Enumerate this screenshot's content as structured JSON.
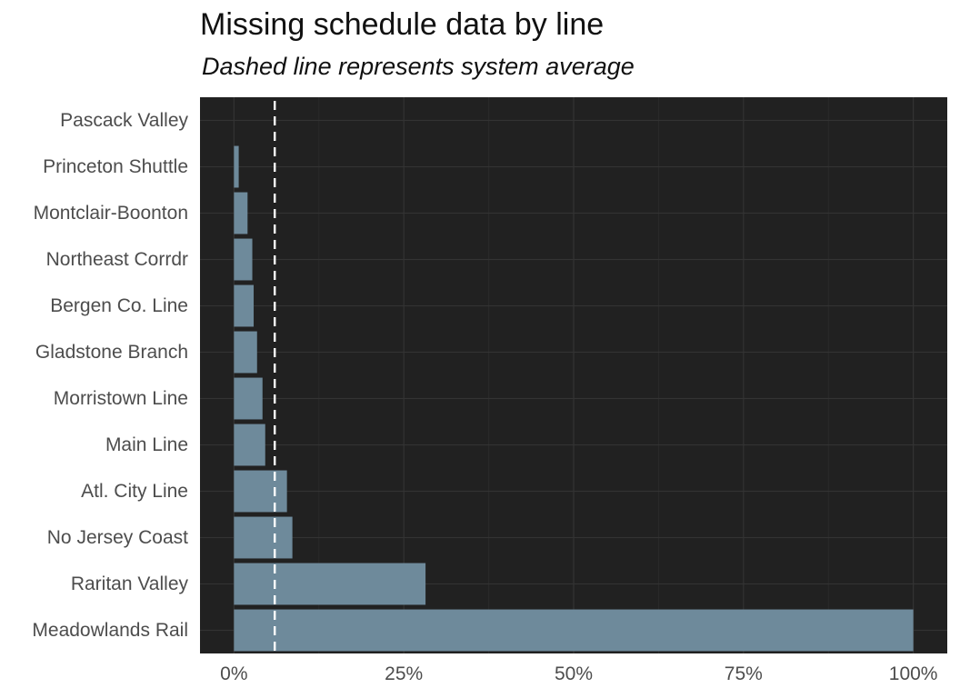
{
  "chart_data": {
    "type": "bar",
    "orientation": "horizontal",
    "title": "Missing schedule data by line",
    "subtitle": "Dashed line represents system average",
    "xlabel": "",
    "ylabel": "",
    "categories": [
      "Pascack Valley",
      "Princeton Shuttle",
      "Montclair-Boonton",
      "Northeast Corrdr",
      "Bergen Co. Line ",
      "Gladstone Branch",
      "Morristown Line",
      "Main Line",
      "Atl. City Line",
      "No Jersey Coast",
      "Raritan Valley",
      "Meadowlands Rail"
    ],
    "values": [
      0.0,
      0.7,
      2.0,
      2.7,
      2.9,
      3.4,
      4.2,
      4.6,
      7.8,
      8.6,
      28.2,
      100.0
    ],
    "value_unit": "percent",
    "reference_line": {
      "value": 6.0,
      "style": "dashed",
      "color": "#ffffff"
    },
    "xlim": [
      -5,
      105
    ],
    "x_ticks": [
      0,
      25,
      50,
      75,
      100
    ],
    "x_tick_labels": [
      "0%",
      "25%",
      "50%",
      "75%",
      "100%"
    ],
    "grid": true,
    "legend": "none",
    "colors": {
      "panel_background": "#212121",
      "grid_major": "#333333",
      "grid_minor": "#2a2a2a",
      "bar": "#6e8a9b",
      "text": "#4d4d4d",
      "title": "#111111"
    }
  }
}
